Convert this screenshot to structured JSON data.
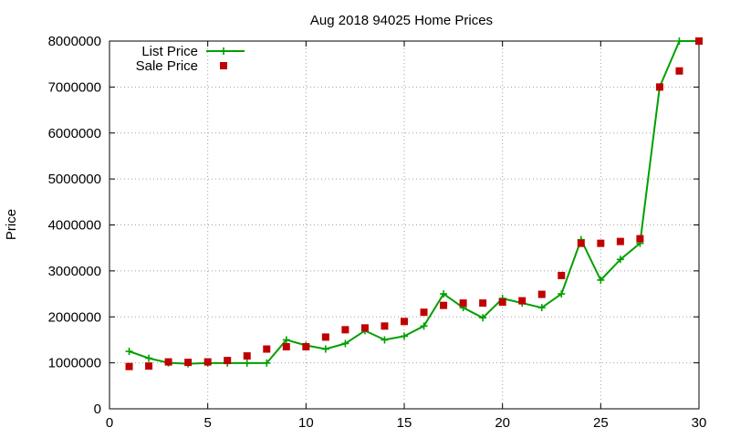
{
  "chart_data": {
    "type": "line",
    "title": "Aug 2018 94025 Home Prices",
    "xlabel": "",
    "ylabel": "Price",
    "xlim": [
      0,
      30
    ],
    "ylim": [
      0,
      8000000
    ],
    "xticks": [
      0,
      5,
      10,
      15,
      20,
      25,
      30
    ],
    "yticks": [
      0,
      1000000,
      2000000,
      3000000,
      4000000,
      5000000,
      6000000,
      7000000,
      8000000
    ],
    "xtick_labels": [
      "0",
      "5",
      "10",
      "15",
      "20",
      "25",
      "30"
    ],
    "ytick_labels": [
      "0",
      "1000000",
      "2000000",
      "3000000",
      "4000000",
      "5000000",
      "6000000",
      "7000000",
      "8000000"
    ],
    "grid": true,
    "legend_position": "top-left",
    "series": [
      {
        "name": "List Price",
        "style": "linespoints",
        "marker": "plus",
        "color": "#00a000",
        "x": [
          1,
          2,
          3,
          4,
          5,
          6,
          7,
          8,
          9,
          10,
          11,
          12,
          13,
          14,
          15,
          16,
          17,
          18,
          19,
          20,
          21,
          22,
          23,
          24,
          25,
          26,
          27,
          28,
          29,
          30
        ],
        "y": [
          1250000,
          1100000,
          1000000,
          980000,
          995000,
          995000,
          995000,
          995000,
          1500000,
          1380000,
          1300000,
          1420000,
          1700000,
          1500000,
          1580000,
          1800000,
          2500000,
          2200000,
          1980000,
          2400000,
          2300000,
          2200000,
          2500000,
          3680000,
          2800000,
          3250000,
          3600000,
          7000000,
          8000000,
          8000000
        ]
      },
      {
        "name": "Sale Price",
        "style": "points",
        "marker": "square",
        "color": "#c00000",
        "x": [
          1,
          2,
          3,
          4,
          5,
          6,
          7,
          8,
          9,
          10,
          11,
          12,
          13,
          14,
          15,
          16,
          17,
          18,
          19,
          20,
          21,
          22,
          23,
          24,
          25,
          26,
          27,
          28,
          29,
          30
        ],
        "y": [
          920000,
          930000,
          1020000,
          1010000,
          1020000,
          1050000,
          1150000,
          1300000,
          1350000,
          1350000,
          1560000,
          1720000,
          1760000,
          1800000,
          1900000,
          2100000,
          2250000,
          2300000,
          2300000,
          2320000,
          2350000,
          2490000,
          2900000,
          3600000,
          3600000,
          3640000,
          3700000,
          7000000,
          7350000,
          8000000
        ]
      }
    ]
  }
}
